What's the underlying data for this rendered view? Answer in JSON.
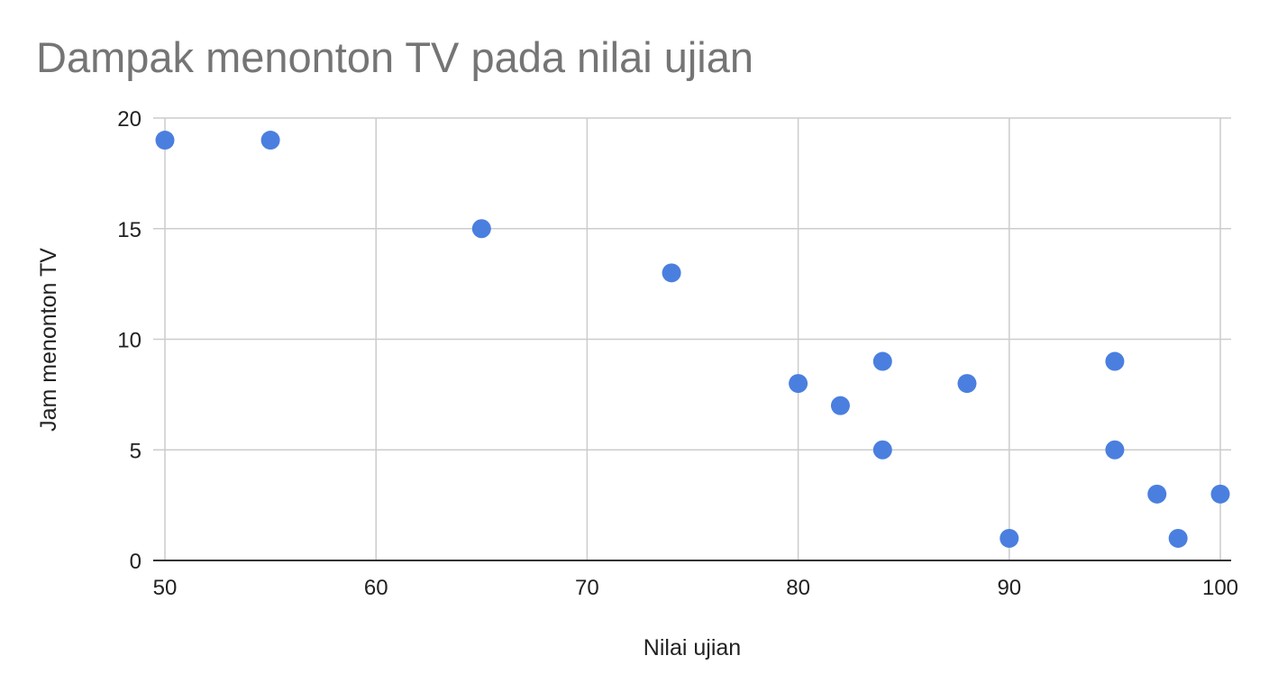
{
  "chart_data": {
    "type": "scatter",
    "title": "Dampak menonton TV pada nilai ujian",
    "xlabel": "Nilai ujian",
    "ylabel": "Jam menonton TV",
    "xlim": [
      50,
      100
    ],
    "ylim": [
      0,
      20
    ],
    "x_ticks": [
      50,
      60,
      70,
      80,
      90,
      100
    ],
    "y_ticks": [
      0,
      5,
      10,
      15,
      20
    ],
    "grid": true,
    "legend": "none",
    "colors": {
      "point": "#4a7fdf",
      "grid": "#cccccc",
      "baseline": "#333333",
      "title": "#757575",
      "text": "#222222"
    },
    "points": [
      {
        "x": 50,
        "y": 19
      },
      {
        "x": 55,
        "y": 19
      },
      {
        "x": 65,
        "y": 15
      },
      {
        "x": 74,
        "y": 13
      },
      {
        "x": 80,
        "y": 8
      },
      {
        "x": 82,
        "y": 7
      },
      {
        "x": 84,
        "y": 9
      },
      {
        "x": 84,
        "y": 5
      },
      {
        "x": 88,
        "y": 8
      },
      {
        "x": 90,
        "y": 1
      },
      {
        "x": 95,
        "y": 9
      },
      {
        "x": 95,
        "y": 5
      },
      {
        "x": 97,
        "y": 3
      },
      {
        "x": 98,
        "y": 1
      },
      {
        "x": 100,
        "y": 3
      }
    ]
  }
}
